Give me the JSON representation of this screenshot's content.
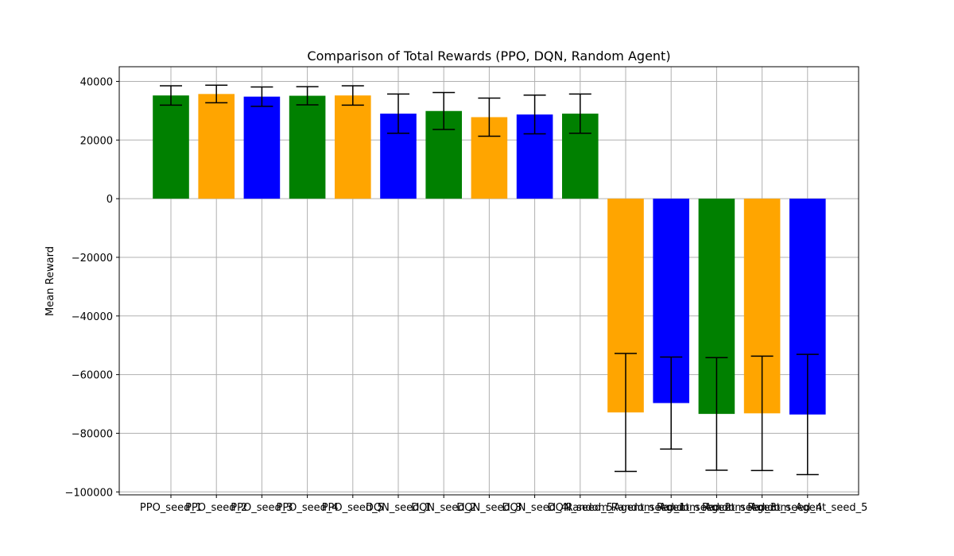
{
  "chart_data": {
    "type": "bar",
    "title": "Comparison of Total Rewards (PPO, DQN, Random Agent)",
    "xlabel": "",
    "ylabel": "Mean Reward",
    "categories": [
      "PPO_seed_1",
      "PPO_seed_2",
      "PPO_seed_3",
      "PPO_seed_4",
      "PPO_seed_5",
      "DQN_seed_1",
      "DQN_seed_2",
      "DQN_seed_3",
      "DQN_seed_4",
      "DQN_seed_5",
      "Random_Agent_seed_1",
      "Random_Agent_seed_2",
      "Random_Agent_seed_3",
      "Random_Agent_seed_4",
      "Random_Agent_seed_5"
    ],
    "values": [
      35200,
      35700,
      34800,
      35100,
      35200,
      29000,
      29900,
      27800,
      28700,
      29000,
      -72900,
      -69700,
      -73400,
      -73200,
      -73600
    ],
    "errors": [
      3300,
      3000,
      3300,
      3100,
      3300,
      6700,
      6300,
      6500,
      6600,
      6700,
      20100,
      15700,
      19200,
      19500,
      20500
    ],
    "colors": [
      "#008000",
      "#ffa500",
      "#0000ff",
      "#008000",
      "#ffa500",
      "#0000ff",
      "#008000",
      "#ffa500",
      "#0000ff",
      "#008000",
      "#ffa500",
      "#0000ff",
      "#008000",
      "#ffa500",
      "#0000ff"
    ],
    "ylim": [
      -101000,
      45000
    ],
    "yticks": [
      40000,
      20000,
      0,
      -20000,
      -40000,
      -60000,
      -80000,
      -100000
    ],
    "ytick_labels": [
      "40000",
      "20000",
      "0",
      "−20000",
      "−40000",
      "−60000",
      "−80000",
      "−100000"
    ],
    "grid": true
  }
}
